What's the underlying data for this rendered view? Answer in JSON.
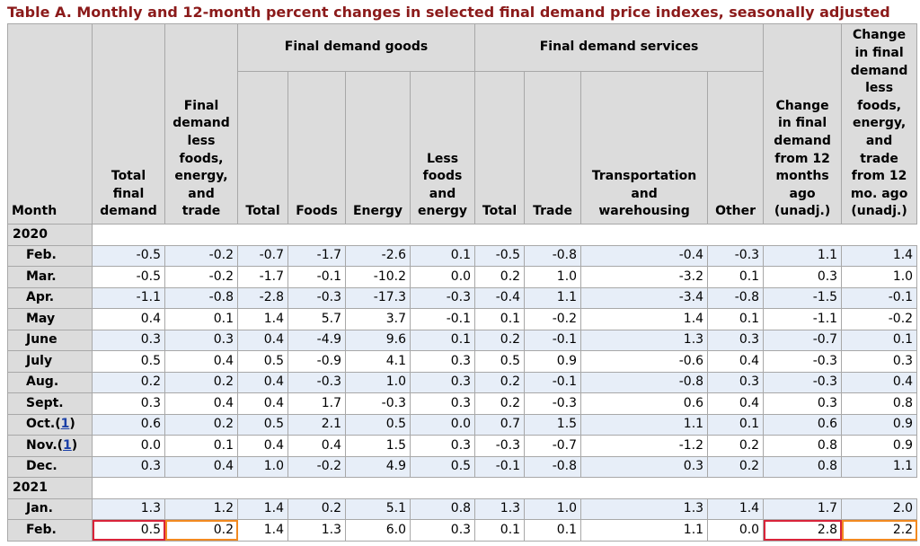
{
  "title": "Table A. Monthly and 12-month percent changes in selected final demand price indexes, seasonally adjusted",
  "headers": {
    "month": "Month",
    "total_final_demand": "Total final demand",
    "fd_less": "Final demand less foods, energy, and trade",
    "goods_group": "Final demand goods",
    "services_group": "Final demand services",
    "goods_total": "Total",
    "goods_foods": "Foods",
    "goods_energy": "Energy",
    "goods_less": "Less foods and energy",
    "services_total": "Total",
    "services_trade": "Trade",
    "services_transport": "Transportation and warehousing",
    "services_other": "Other",
    "change12": "Change in final demand from 12 months ago (unadj.)",
    "change12_less": "Change in final demand less foods, energy, and trade from 12 mo. ago (unadj.)"
  },
  "years": [
    "2020",
    "2021"
  ],
  "footnote_marker": "1",
  "rows_2020": [
    {
      "month": "Feb.",
      "v": [
        "-0.5",
        "-0.2",
        "-0.7",
        "-1.7",
        "-2.6",
        "0.1",
        "-0.5",
        "-0.8",
        "-0.4",
        "-0.3",
        "1.1",
        "1.4"
      ]
    },
    {
      "month": "Mar.",
      "v": [
        "-0.5",
        "-0.2",
        "-1.7",
        "-0.1",
        "-10.2",
        "0.0",
        "0.2",
        "1.0",
        "-3.2",
        "0.1",
        "0.3",
        "1.0"
      ]
    },
    {
      "month": "Apr.",
      "v": [
        "-1.1",
        "-0.8",
        "-2.8",
        "-0.3",
        "-17.3",
        "-0.3",
        "-0.4",
        "1.1",
        "-3.4",
        "-0.8",
        "-1.5",
        "-0.1"
      ]
    },
    {
      "month": "May",
      "v": [
        "0.4",
        "0.1",
        "1.4",
        "5.7",
        "3.7",
        "-0.1",
        "0.1",
        "-0.2",
        "1.4",
        "0.1",
        "-1.1",
        "-0.2"
      ]
    },
    {
      "month": "June",
      "v": [
        "0.3",
        "0.3",
        "0.4",
        "-4.9",
        "9.6",
        "0.1",
        "0.2",
        "-0.1",
        "1.3",
        "0.3",
        "-0.7",
        "0.1"
      ]
    },
    {
      "month": "July",
      "v": [
        "0.5",
        "0.4",
        "0.5",
        "-0.9",
        "4.1",
        "0.3",
        "0.5",
        "0.9",
        "-0.6",
        "0.4",
        "-0.3",
        "0.3"
      ]
    },
    {
      "month": "Aug.",
      "v": [
        "0.2",
        "0.2",
        "0.4",
        "-0.3",
        "1.0",
        "0.3",
        "0.2",
        "-0.1",
        "-0.8",
        "0.3",
        "-0.3",
        "0.4"
      ]
    },
    {
      "month": "Sept.",
      "v": [
        "0.3",
        "0.4",
        "0.4",
        "1.7",
        "-0.3",
        "0.3",
        "0.2",
        "-0.3",
        "0.6",
        "0.4",
        "0.3",
        "0.8"
      ]
    },
    {
      "month": "Oct.",
      "v": [
        "0.6",
        "0.2",
        "0.5",
        "2.1",
        "0.5",
        "0.0",
        "0.7",
        "1.5",
        "1.1",
        "0.1",
        "0.6",
        "0.9"
      ]
    },
    {
      "month": "Nov.",
      "v": [
        "0.0",
        "0.1",
        "0.4",
        "0.4",
        "1.5",
        "0.3",
        "-0.3",
        "-0.7",
        "-1.2",
        "0.2",
        "0.8",
        "0.9"
      ]
    },
    {
      "month": "Dec.",
      "v": [
        "0.3",
        "0.4",
        "1.0",
        "-0.2",
        "4.9",
        "0.5",
        "-0.1",
        "-0.8",
        "0.3",
        "0.2",
        "0.8",
        "1.1"
      ]
    }
  ],
  "rows_2021": [
    {
      "month": "Jan.",
      "v": [
        "1.3",
        "1.2",
        "1.4",
        "0.2",
        "5.1",
        "0.8",
        "1.3",
        "1.0",
        "1.3",
        "1.4",
        "1.7",
        "2.0"
      ]
    },
    {
      "month": "Feb.",
      "v": [
        "0.5",
        "0.2",
        "1.4",
        "1.3",
        "6.0",
        "0.3",
        "0.1",
        "0.1",
        "1.1",
        "0.0",
        "2.8",
        "2.2"
      ]
    }
  ],
  "highlight_colors": {
    "red": "#d9243a",
    "orange": "#f28a21"
  }
}
